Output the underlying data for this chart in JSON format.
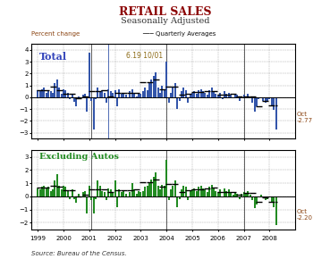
{
  "title": "RETAIL SALES",
  "subtitle": "Seasonally Adjusted",
  "title_color": "#8B0000",
  "subtitle_color": "#333333",
  "source_text": "Source: Bureau of the Census.",
  "legend_label_pct": "Percent change",
  "legend_label_avg": "Quarterly Averages",
  "panel1_label": "Total",
  "panel2_label": "Excluding Autos",
  "panel1_annotation": "6.19 10/01",
  "panel1_ann_color": "#8B6914",
  "panel1_oct_label": "Oct\n-2.77",
  "panel2_oct_label": "Oct\n-2.20",
  "oct_label_color": "#8B4513",
  "bar_color_blue": "#3355AA",
  "bar_color_green": "#228B22",
  "quarterly_avg_color": "#000000",
  "grid_color": "#aaaaaa",
  "panel1_ylim": [
    -3.5,
    4.5
  ],
  "panel2_ylim": [
    -2.5,
    3.5
  ],
  "panel1_yticks": [
    -3,
    -2,
    -1,
    0,
    1,
    2,
    3,
    4
  ],
  "panel2_yticks": [
    -2,
    -1,
    0,
    1,
    2,
    3
  ],
  "year_start": 1998.75,
  "year_end": 2009.0,
  "x_ticks": [
    1999,
    2000,
    2001,
    2002,
    2003,
    2004,
    2005,
    2006,
    2007,
    2008
  ],
  "vlines_year": [
    2001.08,
    2004.0,
    2007.0
  ],
  "panel1_special_vline": 2001.75,
  "panel1_data": [
    0.6,
    0.5,
    0.7,
    0.8,
    0.4,
    0.5,
    0.5,
    0.4,
    1.2,
    1.5,
    0.8,
    0.3,
    0.7,
    0.6,
    0.4,
    -0.2,
    0.3,
    -0.4,
    -0.8,
    0.1,
    -0.1,
    0.2,
    0.3,
    -1.2,
    3.8,
    -0.3,
    -2.7,
    -0.2,
    0.8,
    0.5,
    0.6,
    0.4,
    -0.5,
    0.7,
    0.5,
    0.4,
    0.6,
    -0.8,
    0.7,
    0.3,
    0.4,
    0.2,
    -0.1,
    0.5,
    0.7,
    0.4,
    0.1,
    0.3,
    0.3,
    0.5,
    0.8,
    0.6,
    1.2,
    1.5,
    1.8,
    2.1,
    0.8,
    0.4,
    1.0,
    0.7,
    3.0,
    -0.5,
    0.4,
    0.9,
    1.2,
    -1.0,
    -0.3,
    0.5,
    0.8,
    0.6,
    -0.5,
    0.3,
    0.4,
    0.5,
    0.3,
    0.6,
    0.7,
    0.5,
    0.4,
    0.2,
    0.6,
    0.8,
    0.5,
    0.3,
    0.2,
    0.4,
    -0.2,
    0.5,
    0.3,
    0.4,
    0.2,
    0.0,
    0.3,
    0.2,
    -0.3,
    0.1,
    0.2,
    0.1,
    0.3,
    0.0,
    -0.5,
    -1.2,
    -0.8,
    -0.2,
    0.0,
    -0.3,
    -0.5,
    -0.3,
    -0.2,
    -0.8,
    -1.1,
    -2.77
  ],
  "panel1_qavg": [
    0.6,
    0.6,
    0.6,
    0.6,
    0.9,
    0.9,
    0.9,
    0.9,
    0.6,
    0.6,
    0.6,
    0.6,
    0.3,
    0.3,
    0.3,
    0.3,
    -0.1,
    -0.1,
    -0.1,
    -0.1,
    0.1,
    0.1,
    0.1,
    0.1,
    0.5,
    0.5,
    0.5,
    0.5,
    0.6,
    0.6,
    0.6,
    0.6,
    0.1,
    0.1,
    0.1,
    0.1,
    0.4,
    0.4,
    0.4,
    0.4,
    0.4,
    0.4,
    0.4,
    0.4,
    0.4,
    0.4,
    0.4,
    0.4,
    1.3,
    1.3,
    1.3,
    1.3,
    1.5,
    1.5,
    1.5,
    1.5,
    0.7,
    0.7,
    0.7,
    0.7,
    0.9,
    0.9,
    0.9,
    0.9,
    0.2,
    0.2,
    0.2,
    0.2,
    0.3,
    0.3,
    0.3,
    0.3,
    0.45,
    0.45,
    0.45,
    0.45,
    0.55,
    0.55,
    0.55,
    0.55,
    0.55,
    0.55,
    0.55,
    0.55,
    0.25,
    0.25,
    0.25,
    0.25,
    0.3,
    0.3,
    0.3,
    0.3,
    0.1,
    0.1,
    0.1,
    0.1,
    0.05,
    0.05,
    0.05,
    0.05,
    -0.8,
    -0.8,
    -0.8,
    -0.8,
    -0.3,
    -0.3,
    -0.3,
    -0.3,
    -0.7,
    -0.7,
    -0.7,
    -0.7
  ],
  "panel2_data": [
    0.6,
    0.5,
    0.7,
    0.8,
    0.6,
    0.7,
    0.4,
    0.5,
    1.2,
    1.7,
    0.8,
    0.5,
    0.8,
    0.7,
    0.4,
    -0.2,
    0.5,
    -0.2,
    -0.5,
    0.2,
    -0.1,
    0.3,
    0.4,
    -1.3,
    0.8,
    -0.3,
    -1.3,
    -0.2,
    1.2,
    0.8,
    0.4,
    0.3,
    -0.3,
    0.6,
    0.5,
    0.3,
    1.2,
    -0.8,
    0.5,
    0.3,
    0.4,
    0.2,
    -0.1,
    0.3,
    1.0,
    0.5,
    0.2,
    0.4,
    0.3,
    0.4,
    0.7,
    0.8,
    1.1,
    1.3,
    1.5,
    1.8,
    0.8,
    0.5,
    0.9,
    0.8,
    2.8,
    -0.3,
    0.5,
    0.8,
    1.2,
    -0.8,
    -0.2,
    0.5,
    0.8,
    0.7,
    -0.3,
    0.4,
    0.5,
    0.6,
    0.4,
    0.7,
    0.8,
    0.6,
    0.5,
    0.3,
    0.7,
    0.9,
    0.6,
    0.4,
    0.3,
    0.5,
    -0.1,
    0.6,
    0.4,
    0.5,
    0.3,
    0.1,
    0.3,
    0.2,
    -0.2,
    0.2,
    0.3,
    0.2,
    0.4,
    0.1,
    -0.3,
    -0.9,
    -0.6,
    -0.1,
    0.1,
    -0.1,
    -0.3,
    -0.2,
    -0.1,
    -0.5,
    -0.8,
    -2.2
  ],
  "panel2_qavg": [
    0.65,
    0.65,
    0.65,
    0.65,
    0.8,
    0.8,
    0.8,
    0.8,
    0.75,
    0.75,
    0.75,
    0.75,
    0.45,
    0.45,
    0.45,
    0.45,
    0.0,
    0.0,
    0.0,
    0.0,
    0.15,
    0.15,
    0.15,
    0.15,
    0.5,
    0.5,
    0.5,
    0.5,
    0.5,
    0.5,
    0.5,
    0.5,
    0.3,
    0.3,
    0.3,
    0.3,
    0.45,
    0.45,
    0.45,
    0.45,
    0.45,
    0.45,
    0.45,
    0.45,
    0.5,
    0.5,
    0.5,
    0.5,
    1.1,
    1.1,
    1.1,
    1.1,
    1.3,
    1.3,
    1.3,
    1.3,
    0.75,
    0.75,
    0.75,
    0.75,
    0.95,
    0.95,
    0.95,
    0.95,
    0.3,
    0.3,
    0.3,
    0.3,
    0.45,
    0.45,
    0.45,
    0.45,
    0.55,
    0.55,
    0.55,
    0.55,
    0.6,
    0.6,
    0.6,
    0.6,
    0.65,
    0.65,
    0.65,
    0.65,
    0.35,
    0.35,
    0.35,
    0.35,
    0.35,
    0.35,
    0.35,
    0.35,
    0.15,
    0.15,
    0.15,
    0.15,
    0.25,
    0.25,
    0.25,
    0.25,
    -0.45,
    -0.45,
    -0.45,
    -0.45,
    -0.1,
    -0.1,
    -0.1,
    -0.1,
    -0.45,
    -0.45,
    -0.45,
    -0.45
  ]
}
